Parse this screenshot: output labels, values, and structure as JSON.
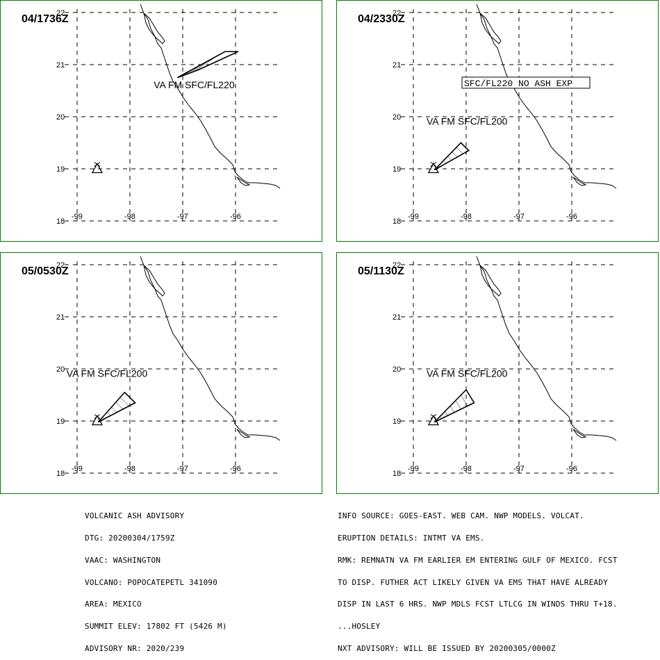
{
  "map": {
    "lon_ticks": [
      "-99",
      "-98",
      "-97",
      "-96"
    ],
    "lat_ticks": [
      "22",
      "21",
      "20",
      "19",
      "18"
    ],
    "line_color": "#000000",
    "border_color": "#008000",
    "volcano_symbol": "volcano-triangle-icon"
  },
  "panels": [
    {
      "time": "04/1736Z",
      "label": "VA FM SFC/FL220",
      "boxed": false,
      "ash_polygon": [
        [
          -97.1,
          20.75
        ],
        [
          -96.2,
          21.25
        ],
        [
          -95.95,
          21.25
        ],
        [
          -96.7,
          20.9
        ]
      ],
      "label_pos": [
        -97.55,
        20.55
      ]
    },
    {
      "time": "04/2330Z",
      "label": "VA FM SFC/FL200",
      "boxed": false,
      "ash_polygon": [
        [
          -98.6,
          18.98
        ],
        [
          -98.1,
          19.5
        ],
        [
          -97.95,
          19.35
        ]
      ],
      "label_pos": [
        -98.75,
        19.85
      ],
      "extra_label": "SFC/FL220 NO ASH EXP"
    },
    {
      "time": "05/0530Z",
      "label": "VA FM SFC/FL200",
      "boxed": false,
      "ash_polygon": [
        [
          -98.6,
          18.98
        ],
        [
          -98.1,
          19.55
        ],
        [
          -97.9,
          19.35
        ]
      ],
      "label_pos": [
        -99.2,
        19.85
      ]
    },
    {
      "time": "05/1130Z",
      "label": "VA FM SFC/FL200",
      "boxed": false,
      "ash_polygon": [
        [
          -98.6,
          18.98
        ],
        [
          -98.0,
          19.6
        ],
        [
          -97.85,
          19.35
        ]
      ],
      "label_pos": [
        -98.75,
        19.85
      ]
    }
  ],
  "advisory_left": [
    "VOLCANIC ASH ADVISORY",
    "DTG: 20200304/1759Z",
    "VAAC: WASHINGTON",
    "VOLCANO: POPOCATEPETL 341090",
    "AREA: MEXICO",
    "SUMMIT ELEV: 17802 FT (5426 M)",
    "ADVISORY NR: 2020/239"
  ],
  "advisory_right": [
    "INFO SOURCE: GOES-EAST. WEB CAM. NWP MODELS. VOLCAT.",
    "ERUPTION DETAILS: INTMT VA EMS.",
    "RMK: REMNATN VA FM EARLIER EM ENTERING GULF OF MEXICO. FCST",
    "TO DISP. FUTHER ACT LIKELY GIVEN VA EMS THAT HAVE ALREADY",
    "DISP IN LAST 6 HRS. NWP MDLS FCST LTLCG IN WINDS THRU T+18.",
    "...HOSLEY",
    "NXT ADVISORY: WILL BE ISSUED BY 20200305/0000Z"
  ],
  "volcano": {
    "lon": -98.62,
    "lat": 19.02
  }
}
